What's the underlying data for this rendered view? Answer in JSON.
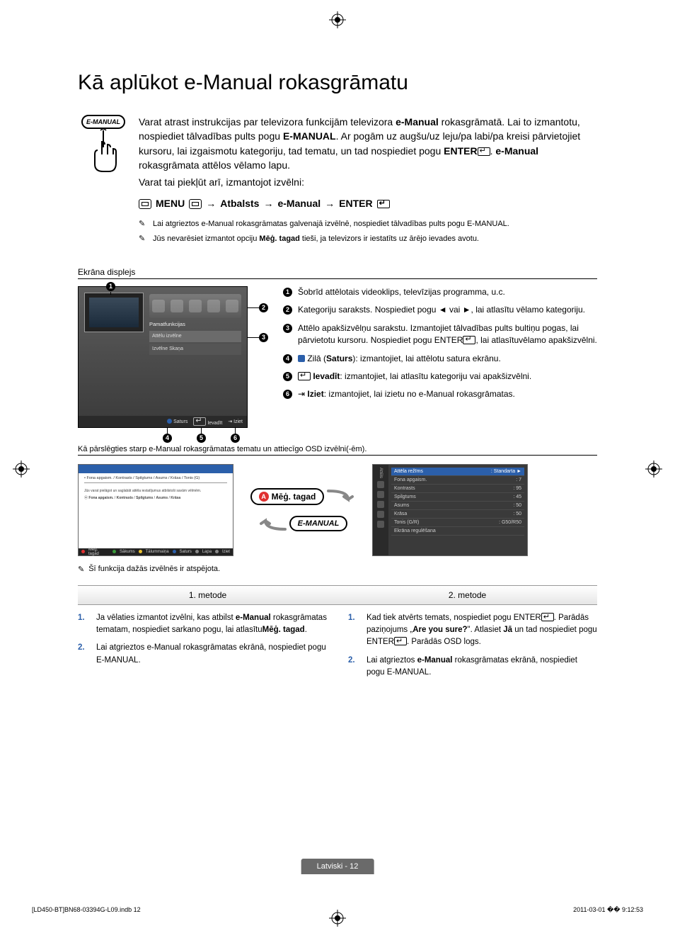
{
  "title": "Kā aplūkot e-Manual rokasgrāmatu",
  "emanual_label": "E-MANUAL",
  "intro": {
    "p1a": "Varat atrast instrukcijas par televizora funkcijām televizora ",
    "p1b": "e-Manual",
    "p1c": " rokasgrāmatā. Lai to izmantotu, nospiediet tālvadības pults pogu ",
    "p1d": "E-MANUAL",
    "p1e": ". Ar pogām uz augšu/uz leju/pa labi/pa kreisi pārvietojiet kursoru, lai izgaismotu kategoriju, tad tematu, un tad nospiediet pogu ",
    "p1f": "ENTER",
    "p1g": ". ",
    "p1h": "e-Manual",
    "p1i": " rokasgrāmata attēlos vēlamo lapu.",
    "p2": "Varat tai piekļūt arī, izmantojot izvēlni:"
  },
  "menu_path": {
    "menu": "MENU",
    "a": "Atbalsts",
    "b": "e-Manual",
    "c": "ENTER"
  },
  "notes": {
    "n1a": "Lai atgrieztos e-Manual rokasgrāmatas galvenajā izvēlnē, nospiediet tālvadības pults pogu ",
    "n1b": "E-MANUAL",
    "n1c": ".",
    "n2a": "Jūs nevarēsiet izmantot opciju ",
    "n2b": "Mēģ. tagad",
    "n2c": " tieši, ja televizors ir iestatīts uz ārējo ievades avotu."
  },
  "screen_label": "Ekrāna displejs",
  "tv": {
    "cat_label": "Pamatfunkcijas",
    "row1": "Attēlu izvēlne",
    "row2": "Izvēlne Skaņa",
    "foot_saturs": "Saturs",
    "foot_ievadit": "Ievadīt",
    "foot_iziet": "Iziet",
    "color_blue": "#2b5faa"
  },
  "legend": {
    "i1": "Šobrīd attēlotais videoklips, televīzijas programma, u.c.",
    "i2": "Kategoriju saraksts. Nospiediet pogu ◄ vai ►, lai atlasītu vēlamo kategoriju.",
    "i3a": "Attēlo apakšizvēlņu sarakstu. Izmantojiet tālvadības pults bultiņu pogas, lai pārvietotu kursoru. Nospiediet pogu ",
    "i3b": "ENTER",
    "i3c": ", lai atlasītuvēlamo apakšizvēlni.",
    "i4a": "Zilā (",
    "i4b": "Saturs",
    "i4c": "): izmantojiet, lai attēlotu satura ekrānu.",
    "i5a": "Ievadīt",
    "i5b": ": izmantojiet, lai atlasītu kategoriju vai apakšizvēlni.",
    "i6a": "Iziet",
    "i6b": ": izmantojiet, lai izietu no e-Manual rokasgrāmatas."
  },
  "switch_label": "Kā pārslēgties starp e-Manual rokasgrāmatas tematu un attiecīgo OSD izvēlni(-ēm).",
  "left_panel": {
    "header_sub": "• Fona apgaism. / Kontrasts / Spilgtums / Asums / Krāsa / Tonis (G)",
    "footer_items": [
      "Mēģ. tagad",
      "Sākums",
      "Tālummaiņa",
      "Saturs",
      "Lapa",
      "Iziet"
    ],
    "footer_colors": [
      "#e03030",
      "#3a9a3a",
      "#e8c030",
      "#2b5faa",
      "#888888",
      "#888888"
    ]
  },
  "pill_try": "Mēģ. tagad",
  "pill_emanual": "E-MANUAL",
  "right_panel": {
    "side_label": "Attēls",
    "rows": [
      [
        "Attēla režīms",
        ": Standarta"
      ],
      [
        "Fona apgaism.",
        ": 7"
      ],
      [
        "Kontrasts",
        ": 95"
      ],
      [
        "Spilgtums",
        ": 45"
      ],
      [
        "Asums",
        ": 50"
      ],
      [
        "Krāsa",
        ": 50"
      ],
      [
        "Tonis (G/R)",
        ": G50/R50"
      ],
      [
        "Ekrāna regulēšana",
        ""
      ]
    ]
  },
  "note_below": "Šī funkcija dažās izvēlnēs ir atspējota.",
  "methods": {
    "h1": "1. metode",
    "h2": "2. metode",
    "m1": {
      "s1a": "Ja vēlaties izmantot izvēlni, kas atbilst ",
      "s1b": "e-Manual",
      "s1c": " rokasgrāmatas tematam, nospiediet sarkano pogu, lai atlasītu",
      "s1d": "Mēģ. tagad",
      "s1e": ".",
      "s2a": "Lai atgrieztos e-Manual rokasgrāmatas ekrānā, nospiediet pogu ",
      "s2b": "E-MANUAL",
      "s2c": "."
    },
    "m2": {
      "s1a": "Kad tiek atvērts temats, nospiediet pogu ",
      "s1b": "ENTER",
      "s1c": ". Parādās paziņojums „",
      "s1d": "Are you sure?",
      "s1e": "\". Atlasiet ",
      "s1f": "Jā",
      "s1g": " un tad nospiediet pogu ",
      "s1h": "ENTER",
      "s1i": ". Parādās OSD logs.",
      "s2a": "Lai atgrieztos ",
      "s2b": "e-Manual",
      "s2c": " rokasgrāmatas ekrānā, nospiediet pogu ",
      "s2d": "E-MANUAL",
      "s2e": "."
    }
  },
  "page_footer": "Latviski - 12",
  "print_left": "[LD450-BT]BN68-03394G-L09.indb   12",
  "print_right": "2011-03-01   �� 9:12:53"
}
